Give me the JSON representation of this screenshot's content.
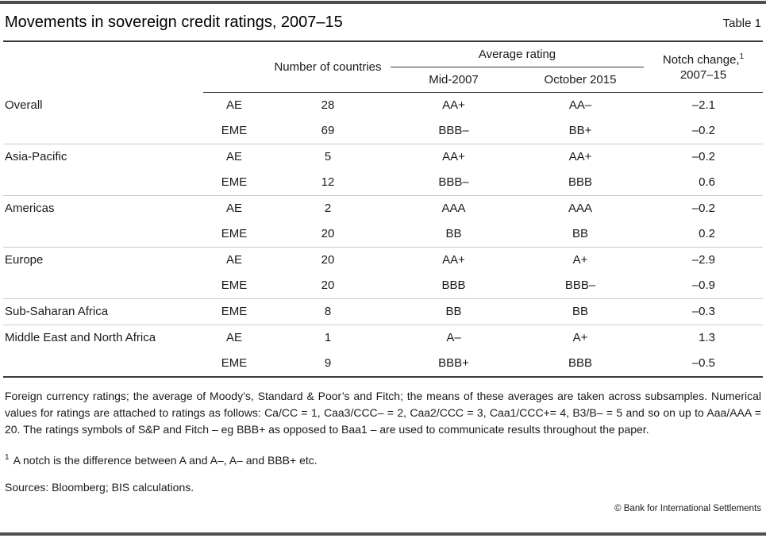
{
  "page": {
    "title": "Movements in sovereign credit ratings, 2007–15",
    "table_label": "Table 1",
    "copyright": "© Bank for International Settlements"
  },
  "table": {
    "headers": {
      "countries": "Number of countries",
      "avg_rating": "Average rating",
      "mid2007": "Mid-2007",
      "oct2015": "October 2015",
      "notch_label": "Notch change,",
      "notch_sup": "1",
      "notch_period": "2007–15"
    },
    "rows": [
      {
        "region": "Overall",
        "group": "AE",
        "count": "28",
        "mid2007": "AA+",
        "oct2015": "AA–",
        "notch": "–2.1"
      },
      {
        "region": "",
        "group": "EME",
        "count": "69",
        "mid2007": "BBB–",
        "oct2015": "BB+",
        "notch": "–0.2"
      },
      {
        "region": "Asia-Pacific",
        "group": "AE",
        "count": "5",
        "mid2007": "AA+",
        "oct2015": "AA+",
        "notch": "–0.2"
      },
      {
        "region": "",
        "group": "EME",
        "count": "12",
        "mid2007": "BBB–",
        "oct2015": "BBB",
        "notch": "0.6"
      },
      {
        "region": "Americas",
        "group": "AE",
        "count": "2",
        "mid2007": "AAA",
        "oct2015": "AAA",
        "notch": "–0.2"
      },
      {
        "region": "",
        "group": "EME",
        "count": "20",
        "mid2007": "BB",
        "oct2015": "BB",
        "notch": "0.2"
      },
      {
        "region": "Europe",
        "group": "AE",
        "count": "20",
        "mid2007": "AA+",
        "oct2015": "A+",
        "notch": "–2.9"
      },
      {
        "region": "",
        "group": "EME",
        "count": "20",
        "mid2007": "BBB",
        "oct2015": "BBB–",
        "notch": "–0.9"
      },
      {
        "region": "Sub-Saharan Africa",
        "group": "EME",
        "count": "8",
        "mid2007": "BB",
        "oct2015": "BB",
        "notch": "–0.3"
      },
      {
        "region": "Middle East and North Africa",
        "group": "AE",
        "count": "1",
        "mid2007": "A–",
        "oct2015": "A+",
        "notch": "1.3"
      },
      {
        "region": "",
        "group": "EME",
        "count": "9",
        "mid2007": "BBB+",
        "oct2015": "BBB",
        "notch": "–0.5"
      }
    ]
  },
  "notes": {
    "general": "Foreign currency ratings; the average of Moody’s, Standard & Poor’s and Fitch; the means of these averages are taken across subsamples. Numerical values for ratings are attached to ratings as follows: Ca/CC = 1, Caa3/CCC– = 2, Caa2/CCC = 3, Caa1/CCC+= 4, B3/B– = 5 and so on up to Aaa/AAA = 20. The ratings symbols of S&P and Fitch – eg BBB+ as opposed to Baa1 – are used to communicate results throughout the paper.",
    "footnote1_sup": "1",
    "footnote1": "A notch is the difference between A and A–, A– and BBB+ etc.",
    "sources": "Sources: Bloomberg; BIS calculations."
  },
  "colors": {
    "rule_heavy": "#3a3a3a",
    "rule_light": "#cbcbcb",
    "page_bar": "#4f4f51",
    "text": "#1a1a1a"
  }
}
